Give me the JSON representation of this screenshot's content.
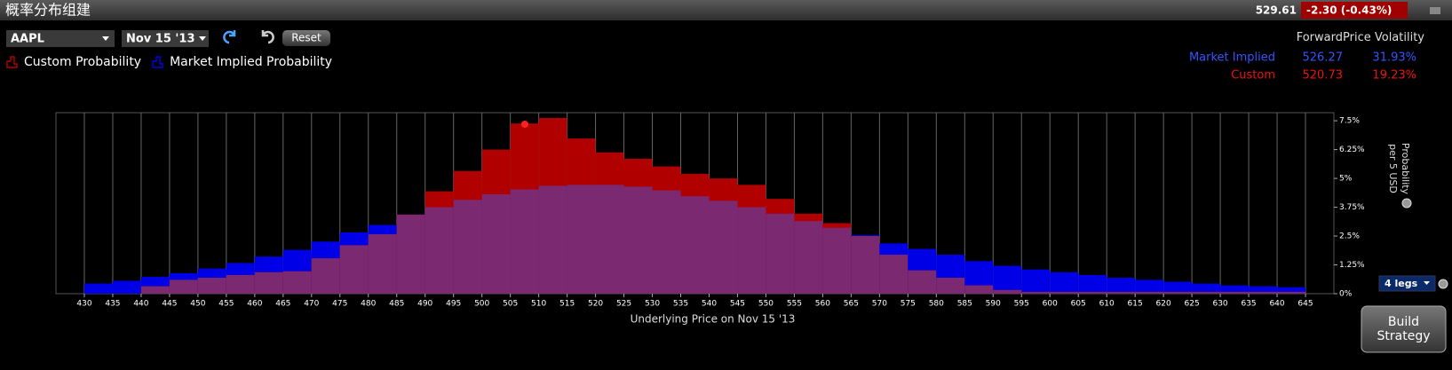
{
  "header": {
    "title": "概率分布组建",
    "last_price": "529.61",
    "change": "-2.30 (-0.43%)"
  },
  "controls": {
    "symbol": "AAPL",
    "expiry": "Nov 15 '13",
    "reset": "Reset",
    "legs": "4 legs",
    "build_strategy": "Build Strategy"
  },
  "summary": {
    "columns": [
      "ForwardPrice",
      "Volatility"
    ],
    "rows": [
      [
        "Market Implied",
        "526.27",
        "31.93%"
      ],
      [
        "Custom",
        "520.73",
        "19.23%"
      ]
    ]
  },
  "chart_data": {
    "type": "histogram",
    "x_label": "Underlying Price on Nov 15 '13",
    "y_label": [
      "Probability",
      "per 5 USD"
    ],
    "bins": [
      430,
      435,
      440,
      445,
      450,
      455,
      460,
      465,
      470,
      475,
      480,
      485,
      490,
      495,
      500,
      505,
      510,
      515,
      520,
      525,
      530,
      535,
      540,
      545,
      550,
      555,
      560,
      565,
      570,
      575,
      580,
      585,
      590,
      595,
      600,
      605,
      610,
      615,
      620,
      625,
      630,
      635,
      640,
      645
    ],
    "series": [
      {
        "name": "Custom Probability",
        "color": "#b00000",
        "values": [
          0,
          0,
          0.32,
          0.6,
          0.69,
          0.81,
          0.93,
          0.97,
          1.53,
          2.1,
          2.58,
          3.43,
          4.44,
          5.32,
          6.25,
          7.38,
          7.62,
          6.73,
          6.13,
          5.85,
          5.52,
          5.2,
          5.0,
          4.72,
          4.11,
          3.47,
          3.06,
          2.5,
          1.69,
          1.01,
          0.69,
          0.36,
          0.16,
          0.08,
          0.08,
          0.08,
          0.08,
          0.08,
          0.08,
          0.08,
          0.08,
          0.08,
          0.08
        ]
      },
      {
        "name": "Market Implied Probability",
        "color": "#0000e6",
        "values": [
          0.44,
          0.56,
          0.73,
          0.89,
          1.09,
          1.33,
          1.61,
          1.9,
          2.26,
          2.66,
          2.98,
          3.43,
          3.75,
          4.07,
          4.31,
          4.52,
          4.68,
          4.72,
          4.72,
          4.64,
          4.48,
          4.23,
          4.03,
          3.75,
          3.47,
          3.15,
          2.86,
          2.54,
          2.18,
          1.94,
          1.69,
          1.41,
          1.21,
          1.05,
          0.93,
          0.81,
          0.69,
          0.6,
          0.52,
          0.44,
          0.36,
          0.32,
          0.28
        ]
      }
    ],
    "overlap_color": "#7b2a72",
    "xlim": [
      425,
      650
    ],
    "xticks": [
      430,
      435,
      440,
      445,
      450,
      455,
      460,
      465,
      470,
      475,
      480,
      485,
      490,
      495,
      500,
      505,
      510,
      515,
      520,
      525,
      530,
      535,
      540,
      545,
      550,
      555,
      560,
      565,
      570,
      575,
      580,
      585,
      590,
      595,
      600,
      605,
      610,
      615,
      620,
      625,
      630,
      635,
      640,
      645
    ],
    "ylim": [
      0,
      7.85
    ],
    "yticks": [
      {
        "value": 0,
        "label": "0%"
      },
      {
        "value": 1.25,
        "label": "1.25%"
      },
      {
        "value": 2.5,
        "label": "2.5%"
      },
      {
        "value": 3.75,
        "label": "3.75%"
      },
      {
        "value": 5,
        "label": "5%"
      },
      {
        "value": 6.25,
        "label": "6.25%"
      },
      {
        "value": 7.5,
        "label": "7.5%"
      }
    ],
    "grid": true
  }
}
